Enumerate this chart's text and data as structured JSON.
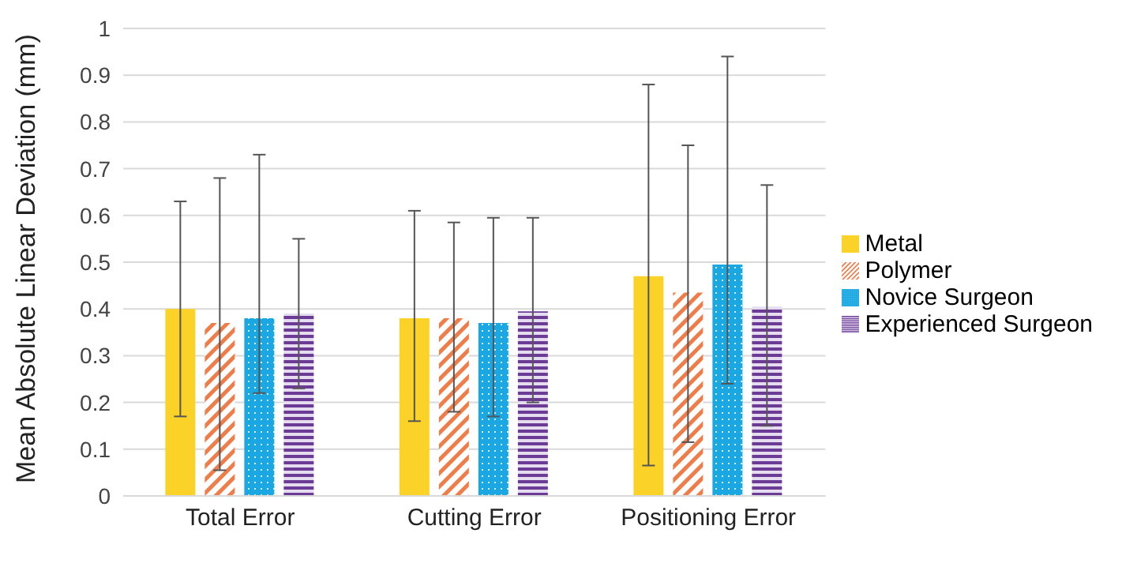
{
  "chart_data": {
    "type": "bar",
    "ylabel": "Mean Absolute Linear Deviation (mm)",
    "categories": [
      "Total Error",
      "Cutting Error",
      "Positioning Error"
    ],
    "series": [
      {
        "name": "Metal",
        "color": "#fad228",
        "values": [
          0.4,
          0.38,
          0.47
        ],
        "errors": [
          [
            0.17,
            0.63
          ],
          [
            0.16,
            0.61
          ],
          [
            0.065,
            0.88
          ]
        ]
      },
      {
        "name": "Polymer",
        "color": "#ee7d4a",
        "values": [
          0.37,
          0.38,
          0.435
        ],
        "errors": [
          [
            0.055,
            0.68
          ],
          [
            0.18,
            0.585
          ],
          [
            0.115,
            0.75
          ]
        ]
      },
      {
        "name": "Novice Surgeon",
        "color": "#1ba8e2",
        "values": [
          0.38,
          0.37,
          0.495
        ],
        "errors": [
          [
            0.22,
            0.73
          ],
          [
            0.17,
            0.595
          ],
          [
            0.24,
            0.94
          ]
        ]
      },
      {
        "name": "Experienced Surgeon",
        "color": "#6b3b96",
        "values": [
          0.39,
          0.395,
          0.405
        ],
        "errors": [
          [
            0.23,
            0.55
          ],
          [
            0.2,
            0.595
          ],
          [
            0.15,
            0.665
          ]
        ]
      }
    ],
    "ylim": [
      0,
      1
    ],
    "yticks": [
      0,
      0.1,
      0.2,
      0.3,
      0.4,
      0.5,
      0.6,
      0.7,
      0.8,
      0.9,
      1
    ],
    "grid": "y",
    "legend": "right"
  }
}
